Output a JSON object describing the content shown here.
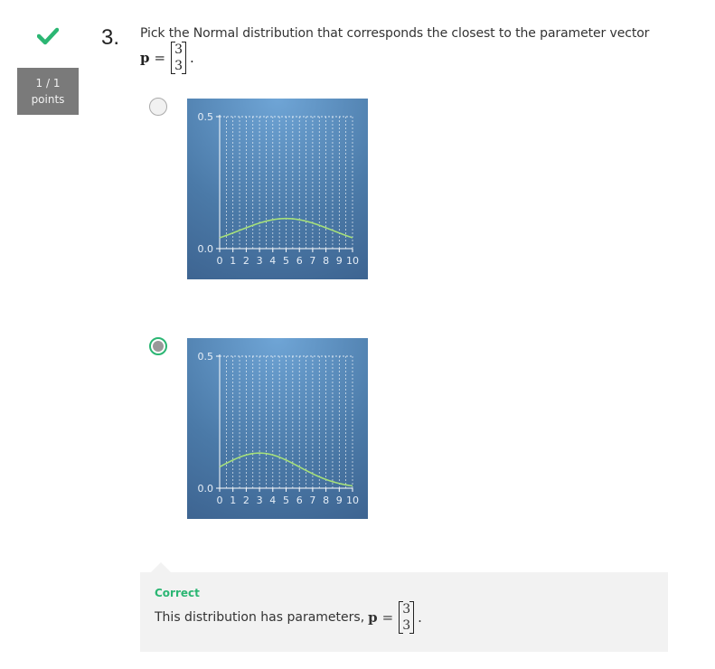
{
  "question": {
    "number": "3.",
    "score_line1": "1 / 1",
    "score_line2": "points",
    "prompt": "Pick the Normal distribution that corresponds the closest to the parameter vector",
    "formula_var": "p",
    "formula_eq": "=",
    "vector": [
      "3",
      "3"
    ],
    "formula_end": "."
  },
  "options": [
    {
      "selected": false,
      "chart_data": {
        "type": "line",
        "x": [
          0,
          0.5,
          1,
          1.5,
          2,
          2.5,
          3,
          3.5,
          4,
          4.5,
          5,
          5.5,
          6,
          6.5,
          7,
          7.5,
          8,
          8.5,
          9,
          9.5,
          10
        ],
        "mean": 5,
        "sd": 3.5,
        "ylim": [
          0,
          0.5
        ],
        "xlim": [
          0,
          10
        ],
        "yticks": [
          "0.0",
          "0.5"
        ],
        "xticks": [
          "0",
          "1",
          "2",
          "3",
          "4",
          "5",
          "6",
          "7",
          "8",
          "9",
          "10"
        ],
        "line_color": "#a6e07a",
        "grid": true
      }
    },
    {
      "selected": true,
      "chart_data": {
        "type": "line",
        "x": [
          0,
          0.5,
          1,
          1.5,
          2,
          2.5,
          3,
          3.5,
          4,
          4.5,
          5,
          5.5,
          6,
          6.5,
          7,
          7.5,
          8,
          8.5,
          9,
          9.5,
          10
        ],
        "mean": 3,
        "sd": 3,
        "ylim": [
          0,
          0.5
        ],
        "xlim": [
          0,
          10
        ],
        "yticks": [
          "0.0",
          "0.5"
        ],
        "xticks": [
          "0",
          "1",
          "2",
          "3",
          "4",
          "5",
          "6",
          "7",
          "8",
          "9",
          "10"
        ],
        "line_color": "#a6e07a",
        "grid": true
      }
    }
  ],
  "feedback": {
    "title": "Correct",
    "text": "This distribution has parameters,",
    "formula_var": "p",
    "formula_eq": "=",
    "vector": [
      "3",
      "3"
    ],
    "formula_end": "."
  },
  "colors": {
    "accent": "#2bb673",
    "score_bg": "#7a7a7a",
    "feedback_bg": "#f2f2f2"
  }
}
